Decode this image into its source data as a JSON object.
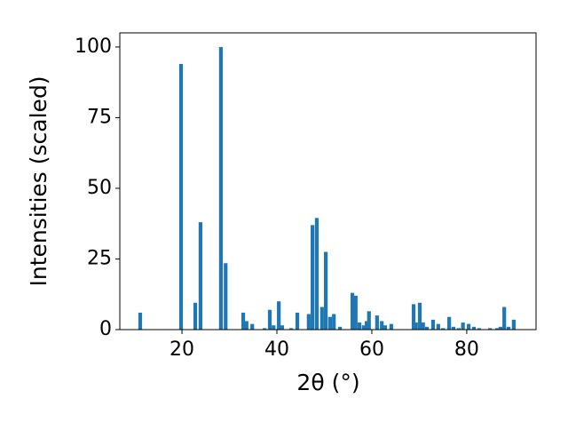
{
  "chart_data": {
    "type": "bar",
    "x_label": "2θ (°)",
    "y_label": "Intensities (scaled)",
    "color": "#1f77b4",
    "xlim": [
      6.9,
      94.6
    ],
    "ylim": [
      0,
      105
    ],
    "xticks": [
      20,
      40,
      60,
      80
    ],
    "yticks": [
      0,
      25,
      50,
      75,
      100
    ],
    "x": [
      11.2,
      19.8,
      22.8,
      23.9,
      28.2,
      29.2,
      32.9,
      33.6,
      34.8,
      37.4,
      38.5,
      39.3,
      40.4,
      41.1,
      43.0,
      44.3,
      46.7,
      47.5,
      48.4,
      49.5,
      50.3,
      51.2,
      52.0,
      53.3,
      55.9,
      56.6,
      57.4,
      58.3,
      58.9,
      59.4,
      61.1,
      62.1,
      62.8,
      64.1,
      68.8,
      69.3,
      70.1,
      70.8,
      71.6,
      72.9,
      74.0,
      75.0,
      76.3,
      77.2,
      78.3,
      79.2,
      80.4,
      81.5,
      82.6,
      84.9,
      86.4,
      87.1,
      87.9,
      88.8,
      89.9
    ],
    "values": [
      6,
      94,
      9.5,
      38,
      100,
      23.5,
      6,
      3,
      2,
      0.5,
      7,
      1.5,
      10,
      1.5,
      0.5,
      6,
      5.5,
      37,
      39.5,
      8,
      27.5,
      4.5,
      5.5,
      1,
      13,
      12,
      2.5,
      1.5,
      3,
      6.5,
      5,
      3,
      1.5,
      2,
      9,
      2.5,
      9.5,
      2.5,
      1,
      3.5,
      2,
      0.5,
      4.5,
      1,
      0.5,
      2.5,
      2,
      1,
      0.5,
      0.5,
      0.5,
      1,
      8,
      1,
      3.5
    ]
  }
}
